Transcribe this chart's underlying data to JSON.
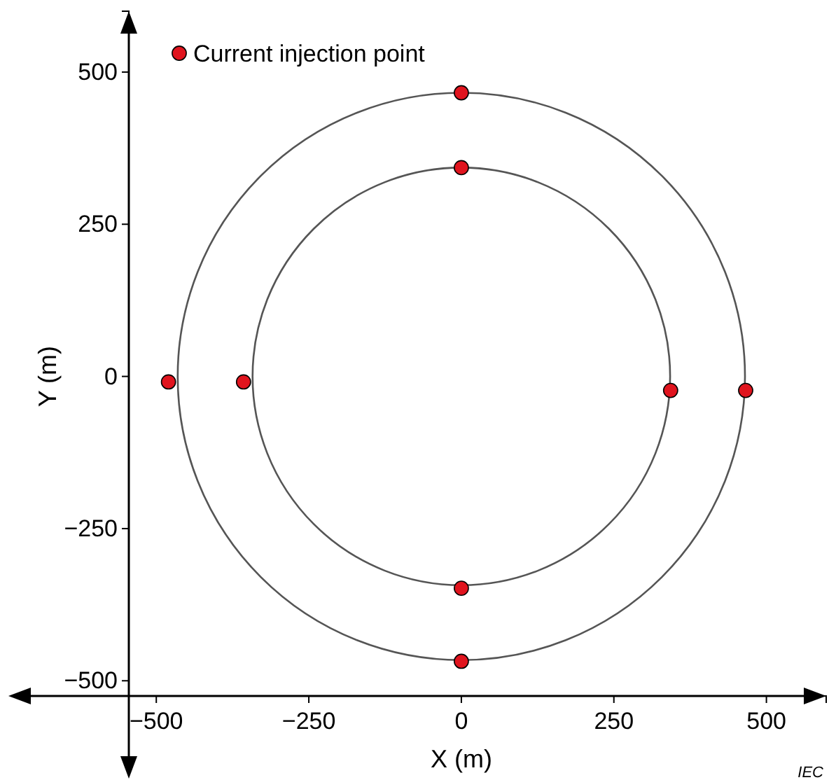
{
  "chart_data": {
    "type": "scatter",
    "xlabel": "X  (m)",
    "ylabel": "Y  (m)",
    "xlim": [
      -545,
      598
    ],
    "ylim": [
      -525,
      600
    ],
    "xticks": [
      {
        "value": -500,
        "label": "−500"
      },
      {
        "value": -250,
        "label": "−250"
      },
      0,
      250,
      500
    ],
    "yticks": [
      {
        "value": -500,
        "label": "−500"
      },
      {
        "value": -250,
        "label": "−250"
      },
      0,
      250,
      500
    ],
    "grid": false,
    "legend": "top left",
    "annotations": [
      "IEC"
    ],
    "series": [
      {
        "name": "Current injection point",
        "color": "#e0141e",
        "marker": "circle",
        "x": [
          0,
          0,
          -480,
          -357,
          343,
          466,
          0,
          0
        ],
        "values": [
          466,
          343,
          -9,
          -9,
          -23,
          -23,
          -348,
          -468
        ]
      }
    ]
  }
}
